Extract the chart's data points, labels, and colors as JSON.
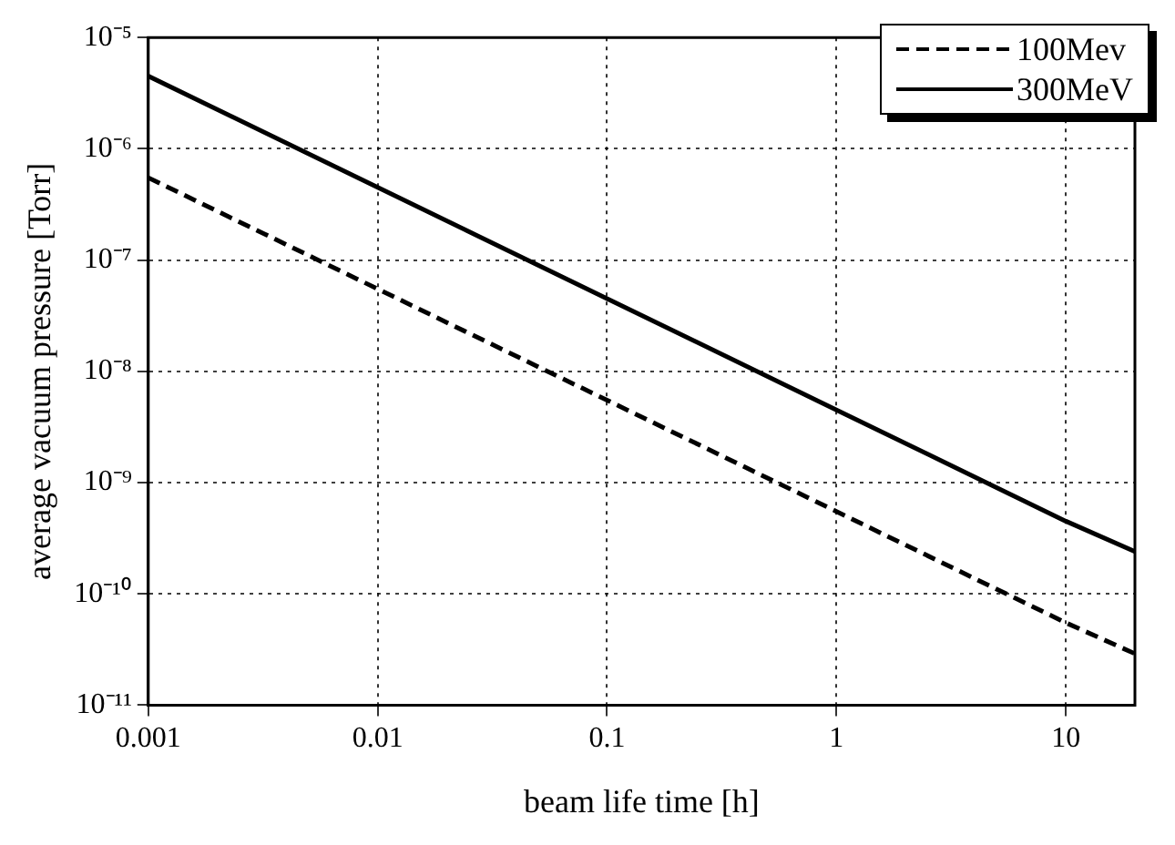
{
  "chart_data": {
    "type": "line",
    "xlabel": "beam life time [h]",
    "ylabel": "average vacuum pressure [Torr]",
    "x": [
      0.001,
      0.01,
      0.1,
      1,
      10,
      20
    ],
    "series": [
      {
        "name": "100Mev",
        "color": "#000000",
        "line_style": "dashed",
        "values": [
          5.5e-07,
          5.5e-08,
          5.5e-09,
          5.5e-10,
          5.5e-11,
          2.9e-11
        ]
      },
      {
        "name": "300MeV",
        "color": "#000000",
        "line_style": "solid",
        "values": [
          4.5e-06,
          4.5e-07,
          4.5e-08,
          4.5e-09,
          4.5e-10,
          2.4e-10
        ]
      }
    ],
    "log": "xy",
    "xlim": [
      0.001,
      20
    ],
    "xticks": [
      0.001,
      0.01,
      0.1,
      1,
      10
    ],
    "ylim": [
      1e-11,
      1e-05
    ],
    "yticks": [
      {
        "value": 1e-11,
        "label": "10⁻¹¹"
      },
      {
        "value": 1e-10,
        "label": "10⁻¹⁰"
      },
      {
        "value": 1e-09,
        "label": "10⁻⁹"
      },
      {
        "value": 1e-08,
        "label": "10⁻⁸"
      },
      {
        "value": 1e-07,
        "label": "10⁻⁷"
      },
      {
        "value": 1e-06,
        "label": "10⁻⁶"
      },
      {
        "value": 1e-05,
        "label": "10⁻⁵"
      }
    ],
    "grid": true,
    "legend": "top right",
    "marker": "none"
  }
}
